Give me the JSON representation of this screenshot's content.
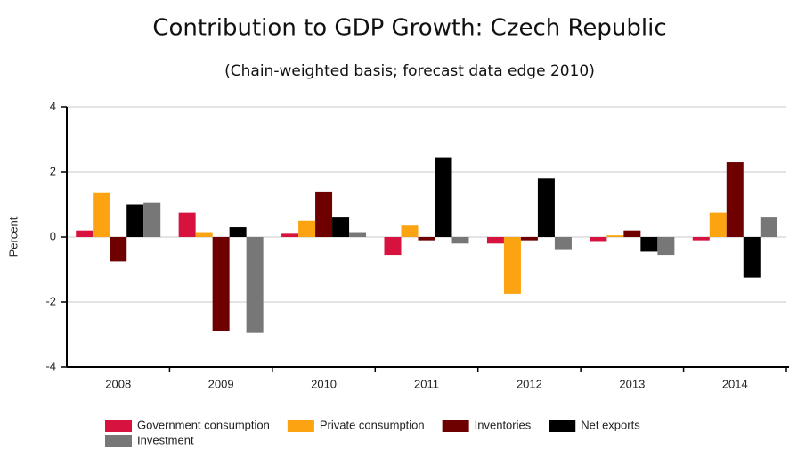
{
  "chart_data": {
    "type": "bar",
    "title": "Contribution to GDP Growth: Czech Republic",
    "subtitle": "(Chain-weighted basis; forecast data edge 2010)",
    "y_label": "Percent",
    "categories": [
      "2008",
      "2009",
      "2010",
      "2011",
      "2012",
      "2013",
      "2014"
    ],
    "series": [
      {
        "name": "Government consumption",
        "color": "#d7123f",
        "values": [
          0.2,
          0.75,
          0.1,
          -0.55,
          -0.2,
          -0.15,
          -0.1
        ]
      },
      {
        "name": "Private consumption",
        "color": "#fca311",
        "values": [
          1.35,
          0.15,
          0.5,
          0.35,
          -1.75,
          0.05,
          0.75
        ]
      },
      {
        "name": "Inventories",
        "color": "#6e0000",
        "values": [
          -0.75,
          -2.9,
          1.4,
          -0.1,
          -0.1,
          0.2,
          2.3
        ]
      },
      {
        "name": "Net exports",
        "color": "#000000",
        "values": [
          1.0,
          0.3,
          0.6,
          2.45,
          1.8,
          -0.45,
          -1.25
        ]
      },
      {
        "name": "Investment",
        "color": "#777777",
        "values": [
          1.05,
          -2.95,
          0.15,
          -0.2,
          -0.4,
          -0.55,
          0.6
        ]
      }
    ],
    "ylim": [
      -4,
      4
    ],
    "yticks": [
      -4,
      -2,
      0,
      2,
      4
    ],
    "grid": true
  }
}
